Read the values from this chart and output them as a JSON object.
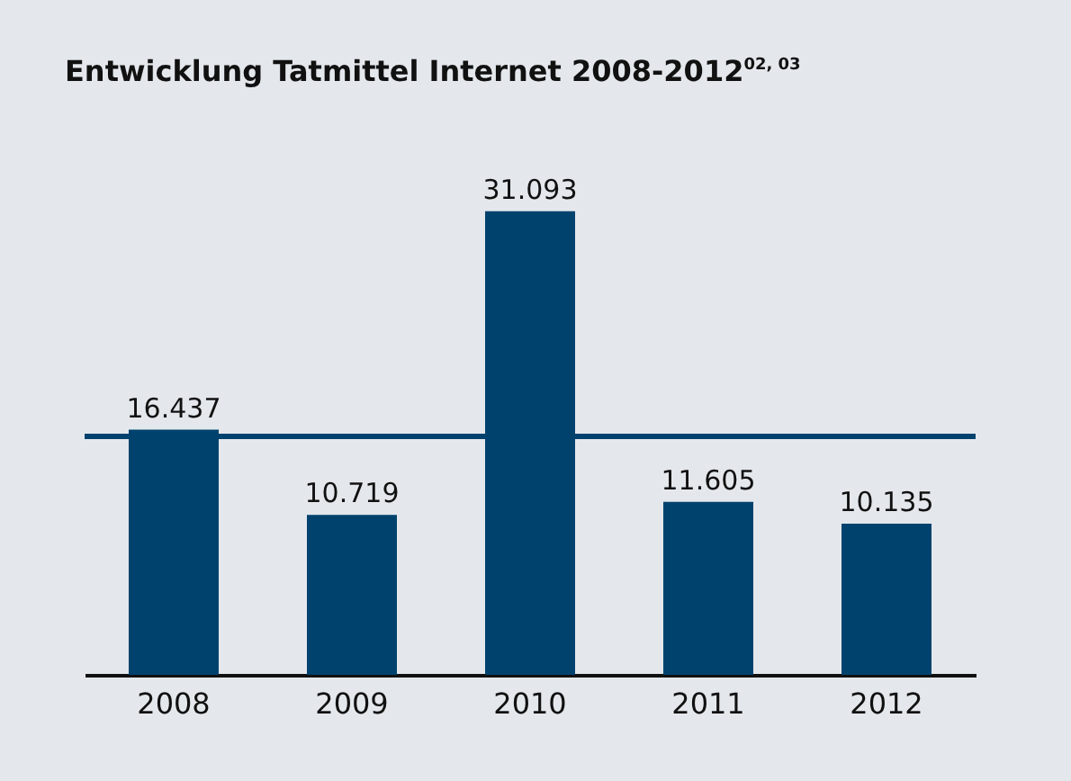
{
  "chart_data": {
    "type": "bar",
    "title": "Entwicklung Tatmittel Internet 2008-2012$^{02, 03}$",
    "categories": [
      "2008",
      "2009",
      "2010",
      "2011",
      "2012"
    ],
    "values": [
      16437,
      10719,
      31093,
      11605,
      10135
    ],
    "color": "#00426e",
    "value_labels": [
      "16.437",
      "10.719",
      "31.093",
      "11.605",
      "10.135"
    ],
    "grid": false,
    "tick_labels": "x",
    "ref_lines": [
      {
        "axis": "y",
        "value": 15998,
        "color": "#00426e"
      }
    ]
  }
}
